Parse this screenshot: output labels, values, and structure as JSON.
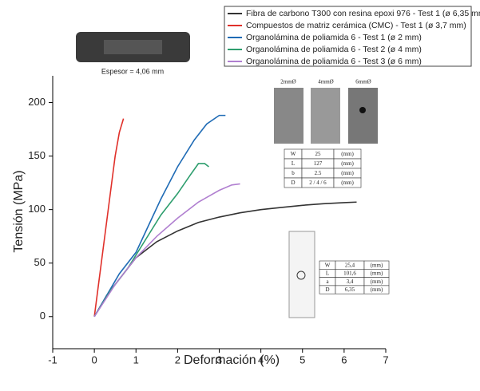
{
  "chart_data": {
    "type": "line",
    "x_label": "Deformación (%)",
    "y_label": "Tensión (MPa)",
    "xlim": [
      -1,
      7
    ],
    "ylim": [
      -30,
      225
    ],
    "xticks": [
      -1,
      0,
      1,
      2,
      3,
      4,
      5,
      6,
      7
    ],
    "yticks": [
      0,
      50,
      100,
      150,
      200
    ],
    "series": [
      {
        "name": "Fibra de carbono T300 con resina epoxi 976 - Test 1 (ø 6,35 mm",
        "color": "#333333",
        "x": [
          0,
          0.3,
          0.7,
          1,
          1.5,
          2,
          2.5,
          3,
          3.5,
          4,
          4.5,
          5,
          5.5,
          6,
          6.3
        ],
        "values": [
          0,
          20,
          40,
          55,
          70,
          80,
          88,
          93,
          97,
          100,
          102,
          104,
          105.5,
          106.5,
          107
        ]
      },
      {
        "name": "Compuestos de matriz cerámica (CMC)  - Test 1 (ø 3,7 mm)",
        "color": "#e0302a",
        "x": [
          0,
          0.1,
          0.2,
          0.3,
          0.4,
          0.5,
          0.6,
          0.7
        ],
        "values": [
          0,
          30,
          60,
          90,
          120,
          150,
          172,
          185
        ]
      },
      {
        "name": "Organolámina de poliamida 6 - Test 1 (ø 2 mm)",
        "color": "#1f6bb5",
        "x": [
          0,
          0.3,
          0.6,
          1,
          1.3,
          1.6,
          2,
          2.4,
          2.7,
          3,
          3.15
        ],
        "values": [
          0,
          20,
          40,
          60,
          85,
          110,
          140,
          165,
          180,
          188,
          188
        ]
      },
      {
        "name": "Organolámina de poliamida 6 - Test 2 (ø 4 mm)",
        "color": "#2e9e6e",
        "x": [
          0,
          0.4,
          0.8,
          1.2,
          1.6,
          2,
          2.3,
          2.5,
          2.65,
          2.75
        ],
        "values": [
          0,
          25,
          45,
          70,
          95,
          115,
          132,
          143,
          143,
          140
        ]
      },
      {
        "name": "Organolámina de poliamida 6 - Test 3 (ø 6 mm)",
        "color": "#b07fd0",
        "x": [
          0,
          0.5,
          1,
          1.5,
          2,
          2.5,
          3,
          3.3,
          3.5
        ],
        "values": [
          0,
          30,
          55,
          75,
          92,
          107,
          118,
          123,
          124
        ]
      }
    ]
  },
  "insets": {
    "specimen_label": "Espesor = 4,06 mm",
    "photo_labels": [
      "2mmØ",
      "4mmØ",
      "6mmØ"
    ],
    "table1": [
      [
        "W",
        "25",
        "(mm)"
      ],
      [
        "L",
        "127",
        "(mm)"
      ],
      [
        "b",
        "2.5",
        "(mm)"
      ],
      [
        "D",
        "2 / 4 / 6",
        "(mm)"
      ]
    ],
    "table2": [
      [
        "W",
        "25,4",
        "(mm)"
      ],
      [
        "L",
        "101,6",
        "(mm)"
      ],
      [
        "a",
        "3,4",
        "(mm)"
      ],
      [
        "D",
        "6,35",
        "(mm)"
      ]
    ]
  }
}
